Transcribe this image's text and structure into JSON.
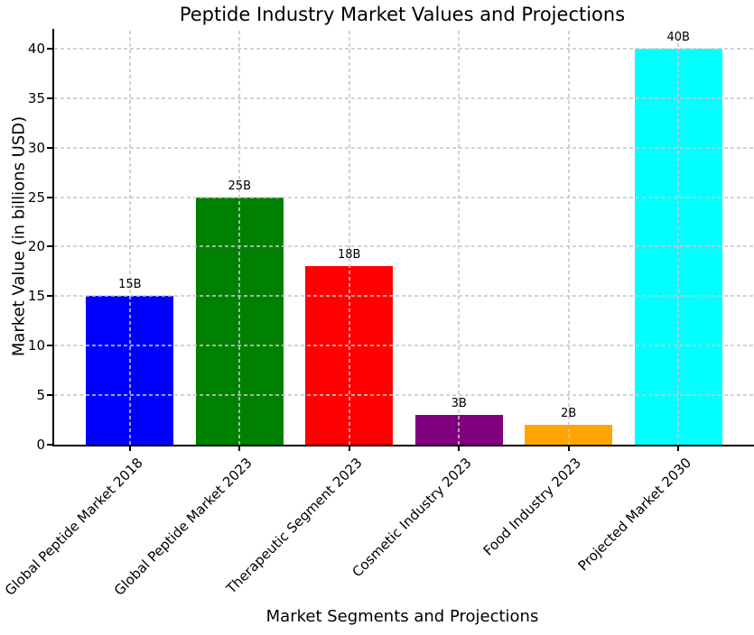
{
  "chart_data": {
    "type": "bar",
    "title": "Peptide Industry Market Values and Projections",
    "xlabel": "Market Segments and Projections",
    "ylabel": "Market Value (in billions USD)",
    "categories": [
      "Global Peptide Market 2018",
      "Global Peptide Market 2023",
      "Therapeutic Segment 2023",
      "Cosmetic Industry 2023",
      "Food Industry 2023",
      "Projected Market 2030"
    ],
    "values": [
      15,
      25,
      18,
      3,
      2,
      40
    ],
    "bar_labels": [
      "15B",
      "25B",
      "18B",
      "3B",
      "2B",
      "40B"
    ],
    "bar_colors": [
      "#0000ff",
      "#008000",
      "#ff0000",
      "#800080",
      "#ffa500",
      "#00ffff"
    ],
    "yticks": [
      0,
      5,
      10,
      15,
      20,
      25,
      30,
      35,
      40
    ],
    "ylim": [
      0,
      42
    ],
    "xlim": [
      -0.69,
      5.69
    ],
    "bar_width_units": 0.8,
    "grid": "dashed",
    "grid_color": "#d3d3d3",
    "legend": "none",
    "background_color": "#ffffff"
  }
}
